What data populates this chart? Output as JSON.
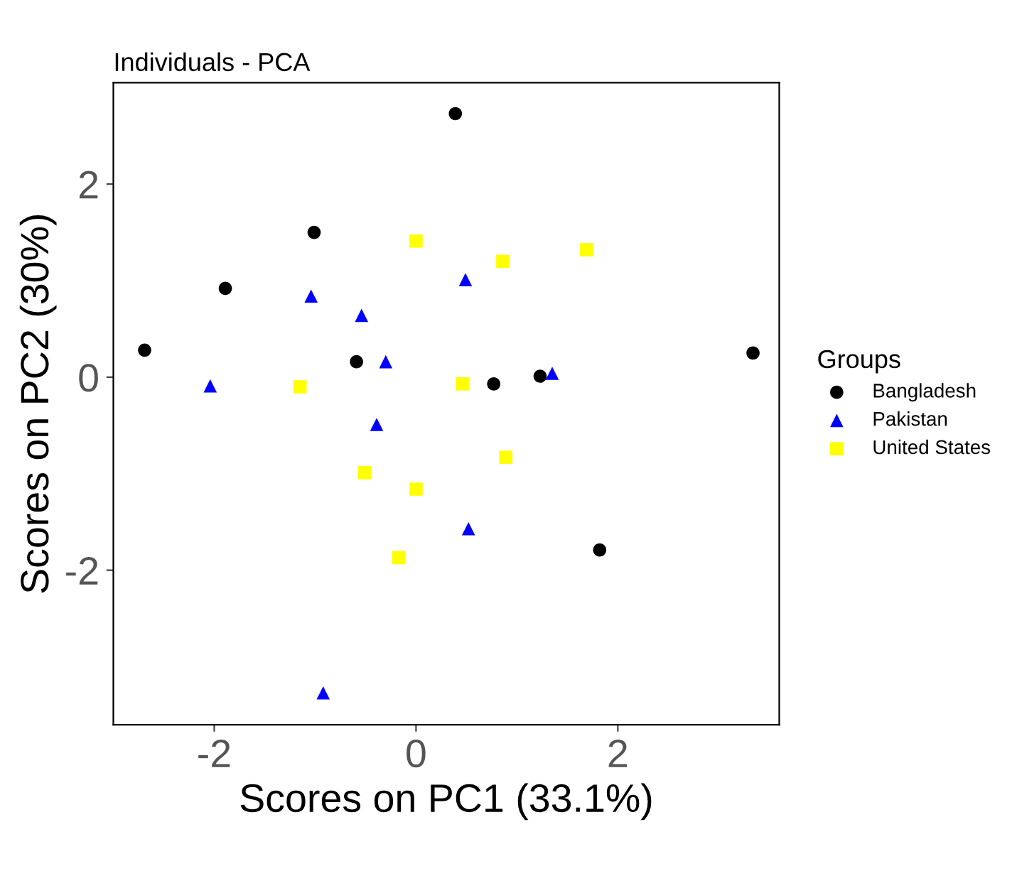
{
  "chart_data": {
    "type": "scatter",
    "title": "Individuals - PCA",
    "xlabel": "Scores on PC1 (33.1%)",
    "ylabel": "Scores on PC2 (30%)",
    "legend_title": "Groups",
    "legend": "right",
    "grid": false,
    "xlim": [
      -3.0,
      3.6
    ],
    "ylim": [
      -3.6,
      3.05
    ],
    "xticks": [
      -2,
      0,
      2
    ],
    "yticks": [
      -2,
      0,
      2
    ],
    "series": [
      {
        "name": "Bangladesh",
        "color": "#000000",
        "marker": "circle",
        "x": [
          -2.69,
          -1.89,
          -1.01,
          0.39,
          -0.59,
          0.77,
          1.23,
          3.34,
          1.82
        ],
        "values": [
          0.28,
          0.92,
          1.5,
          2.73,
          0.16,
          -0.07,
          0.01,
          0.25,
          -1.79
        ]
      },
      {
        "name": "Pakistan",
        "color": "#0000ff",
        "marker": "triangle",
        "x": [
          -2.04,
          -1.04,
          -0.54,
          -0.3,
          -0.39,
          0.49,
          1.35,
          0.52,
          -0.92
        ],
        "values": [
          -0.09,
          0.84,
          0.64,
          0.16,
          -0.49,
          1.01,
          0.04,
          -1.57,
          -3.27
        ]
      },
      {
        "name": "United States",
        "color": "#ffff00",
        "marker": "square",
        "x": [
          0.0,
          0.86,
          1.69,
          -1.15,
          0.46,
          -0.51,
          0.0,
          0.89,
          -0.17
        ],
        "values": [
          1.41,
          1.2,
          1.32,
          -0.1,
          -0.07,
          -0.99,
          -1.16,
          -0.83,
          -1.87
        ]
      }
    ]
  }
}
